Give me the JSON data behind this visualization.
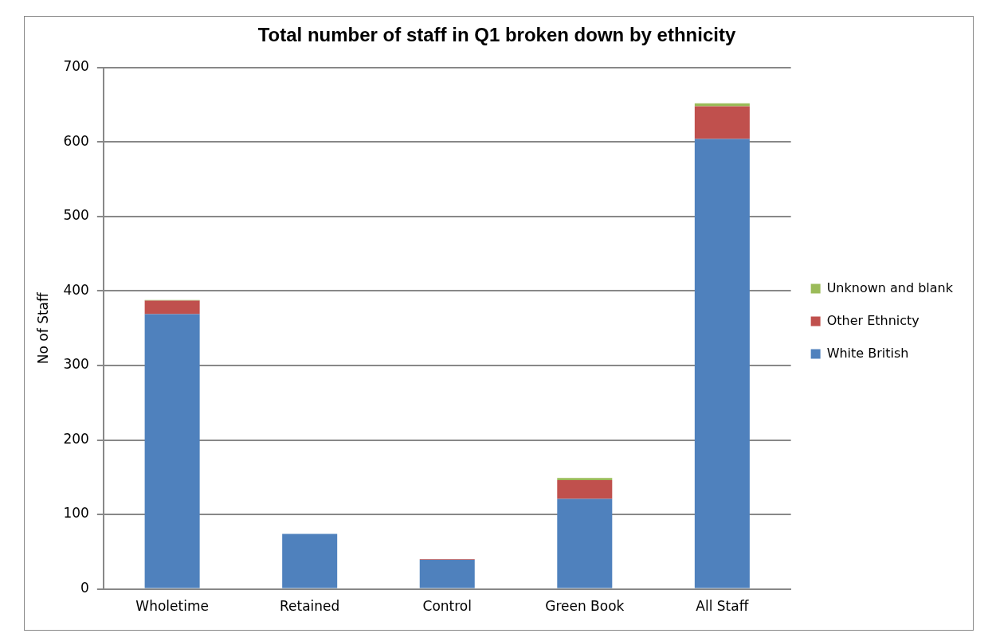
{
  "chart_data": {
    "type": "bar",
    "title": "Total number of staff in Q1 broken down by ethnicity",
    "ylabel": "No of Staff",
    "categories": [
      "Wholetime",
      "Retained",
      "Control",
      "Green Book",
      "All Staff"
    ],
    "series": [
      {
        "name": "White British",
        "color": "#4f81bd",
        "values": [
          369,
          74,
          39,
          121,
          604
        ]
      },
      {
        "name": "Other Ethnicty",
        "color": "#c0504d",
        "values": [
          18,
          0,
          1,
          25,
          44
        ]
      },
      {
        "name": "Unknown and blank",
        "color": "#9bbb59",
        "values": [
          1,
          0,
          0,
          3,
          4
        ]
      }
    ],
    "stacked": true,
    "ylim": [
      0,
      700
    ],
    "yticks": [
      0,
      100,
      200,
      300,
      400,
      500,
      600,
      700
    ],
    "grid": "y",
    "legend": "right"
  }
}
